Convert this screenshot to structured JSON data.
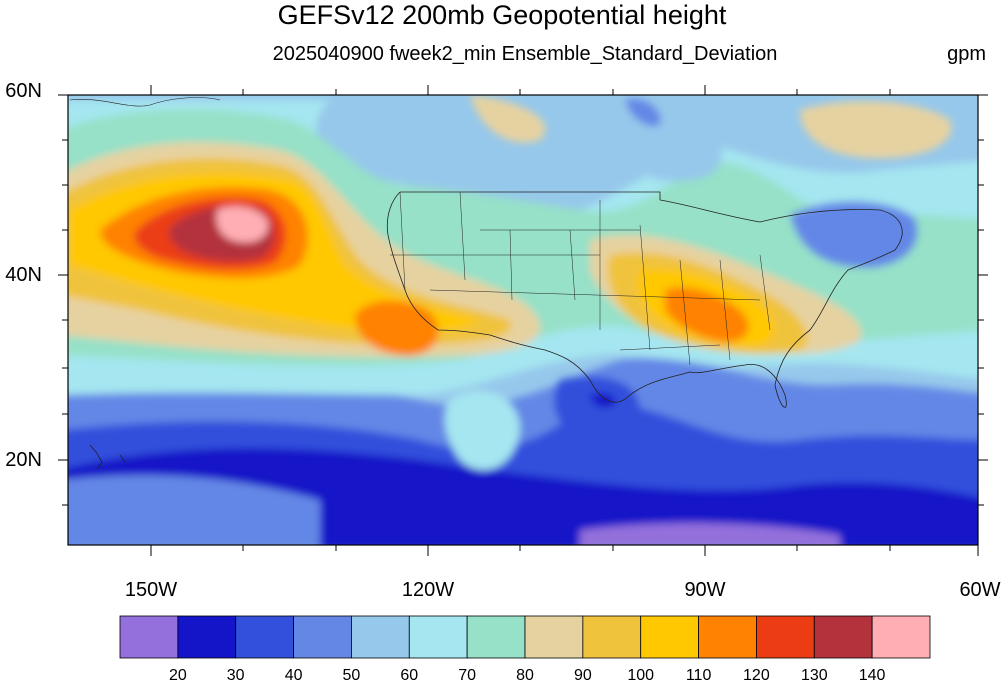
{
  "title": "GEFSv12 200mb Geopotential height",
  "subtitle": "2025040900 fweek2_min Ensemble_Standard_Deviation",
  "units": "gpm",
  "map": {
    "lat_labels": [
      "60N",
      "40N",
      "20N"
    ],
    "lon_labels": [
      "150W",
      "120W",
      "90W",
      "60W"
    ]
  },
  "colorbar": {
    "colors": [
      "#9370db",
      "#1414c8",
      "#3250dc",
      "#6487e6",
      "#96c8eb",
      "#a5e6f0",
      "#96e1c8",
      "#e6d2a0",
      "#f0c33c",
      "#ffc800",
      "#ff8200",
      "#eb3c14",
      "#b4323c",
      "#ffafb4"
    ],
    "labels": [
      "20",
      "30",
      "40",
      "50",
      "60",
      "70",
      "80",
      "90",
      "100",
      "110",
      "120",
      "130",
      "140"
    ]
  }
}
